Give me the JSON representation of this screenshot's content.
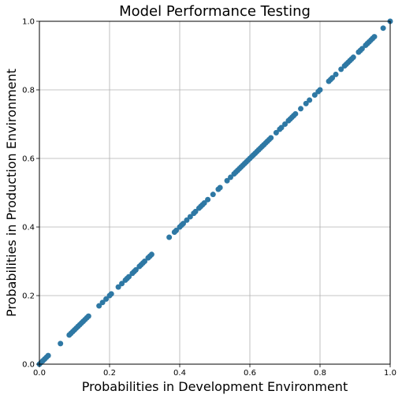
{
  "colors": {
    "point": "#2e78a4",
    "grid": "#b0b0b0",
    "axis": "#000000",
    "background": "#ffffff"
  },
  "chart_data": {
    "type": "scatter",
    "title": "Model Performance Testing",
    "xlabel": "Probabilities in Development Environment",
    "ylabel": "Probabilities in Production Environment",
    "xlim": [
      0,
      1
    ],
    "ylim": [
      0,
      1
    ],
    "xticks": [
      "0.0",
      "0.2",
      "0.4",
      "0.6",
      "0.8",
      "1.0"
    ],
    "yticks": [
      "0.0",
      "0.2",
      "0.4",
      "0.6",
      "0.8",
      "1.0"
    ],
    "grid": true,
    "legend": "none",
    "x": [
      0.0,
      0.005,
      0.01,
      0.015,
      0.02,
      0.025,
      0.06,
      0.085,
      0.09,
      0.095,
      0.1,
      0.105,
      0.11,
      0.115,
      0.12,
      0.125,
      0.13,
      0.135,
      0.14,
      0.17,
      0.18,
      0.19,
      0.2,
      0.205,
      0.225,
      0.235,
      0.245,
      0.25,
      0.255,
      0.265,
      0.27,
      0.275,
      0.285,
      0.29,
      0.295,
      0.3,
      0.31,
      0.315,
      0.32,
      0.37,
      0.385,
      0.39,
      0.4,
      0.405,
      0.41,
      0.42,
      0.43,
      0.44,
      0.445,
      0.455,
      0.46,
      0.465,
      0.47,
      0.48,
      0.495,
      0.51,
      0.515,
      0.535,
      0.545,
      0.555,
      0.56,
      0.565,
      0.57,
      0.575,
      0.58,
      0.585,
      0.59,
      0.595,
      0.6,
      0.605,
      0.61,
      0.615,
      0.62,
      0.625,
      0.63,
      0.635,
      0.64,
      0.645,
      0.65,
      0.655,
      0.66,
      0.675,
      0.685,
      0.69,
      0.7,
      0.71,
      0.715,
      0.72,
      0.725,
      0.73,
      0.745,
      0.76,
      0.77,
      0.785,
      0.795,
      0.8,
      0.825,
      0.83,
      0.835,
      0.845,
      0.86,
      0.87,
      0.875,
      0.88,
      0.885,
      0.89,
      0.895,
      0.91,
      0.915,
      0.92,
      0.93,
      0.935,
      0.94,
      0.945,
      0.95,
      0.955,
      0.98,
      1.0
    ],
    "y": [
      0.0,
      0.005,
      0.01,
      0.015,
      0.02,
      0.025,
      0.06,
      0.085,
      0.09,
      0.095,
      0.1,
      0.105,
      0.11,
      0.115,
      0.12,
      0.125,
      0.13,
      0.135,
      0.14,
      0.17,
      0.18,
      0.19,
      0.2,
      0.205,
      0.225,
      0.235,
      0.245,
      0.25,
      0.255,
      0.265,
      0.27,
      0.275,
      0.285,
      0.29,
      0.295,
      0.3,
      0.31,
      0.315,
      0.32,
      0.37,
      0.385,
      0.39,
      0.4,
      0.405,
      0.41,
      0.42,
      0.43,
      0.44,
      0.445,
      0.455,
      0.46,
      0.465,
      0.47,
      0.48,
      0.495,
      0.51,
      0.515,
      0.535,
      0.545,
      0.555,
      0.56,
      0.565,
      0.57,
      0.575,
      0.58,
      0.585,
      0.59,
      0.595,
      0.6,
      0.605,
      0.61,
      0.615,
      0.62,
      0.625,
      0.63,
      0.635,
      0.64,
      0.645,
      0.65,
      0.655,
      0.66,
      0.675,
      0.685,
      0.69,
      0.7,
      0.71,
      0.715,
      0.72,
      0.725,
      0.73,
      0.745,
      0.76,
      0.77,
      0.785,
      0.795,
      0.8,
      0.825,
      0.83,
      0.835,
      0.845,
      0.86,
      0.87,
      0.875,
      0.88,
      0.885,
      0.89,
      0.895,
      0.91,
      0.915,
      0.92,
      0.93,
      0.935,
      0.94,
      0.945,
      0.95,
      0.955,
      0.98,
      1.0
    ]
  }
}
